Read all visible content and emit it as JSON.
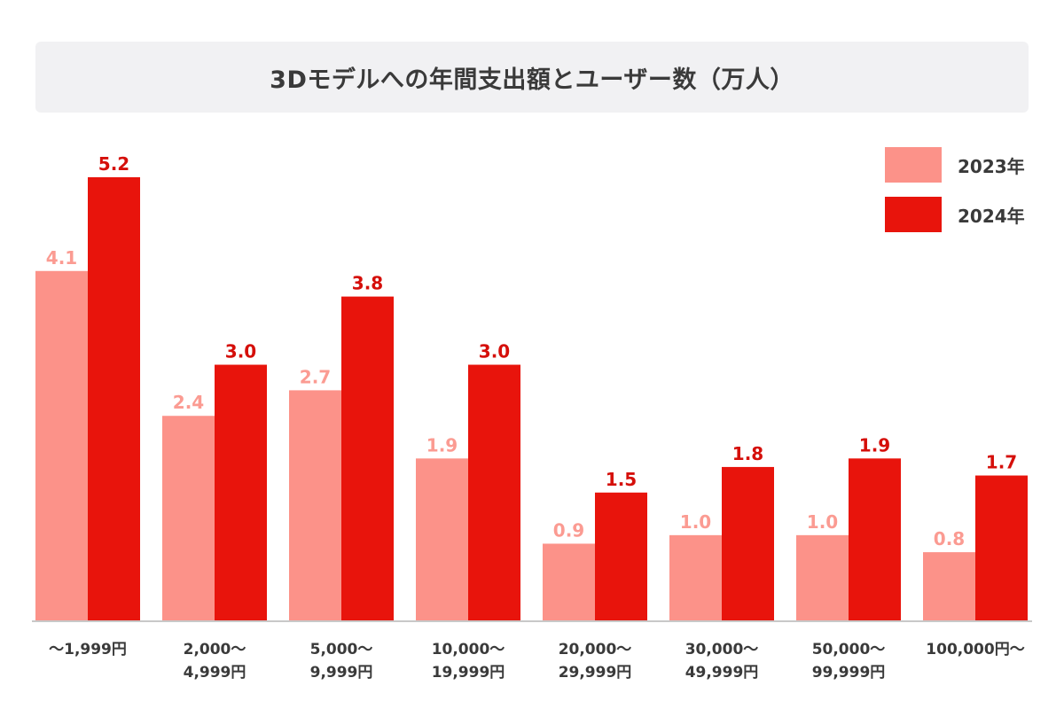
{
  "chart_data": {
    "type": "bar",
    "title": "3Dモデルへの年間支出額とユーザー数（万人）",
    "categories": [
      [
        "～1,999円"
      ],
      [
        "2,000～",
        "4,999円"
      ],
      [
        "5,000～",
        "9,999円"
      ],
      [
        "10,000～",
        "19,999円"
      ],
      [
        "20,000～",
        "29,999円"
      ],
      [
        "30,000～",
        "49,999円"
      ],
      [
        "50,000～",
        "99,999円"
      ],
      [
        "100,000円～"
      ]
    ],
    "series": [
      {
        "name": "2023年",
        "color": "#fc9289",
        "label_color": "#fb9b92",
        "values": [
          4.1,
          2.4,
          2.7,
          1.9,
          0.9,
          1.0,
          1.0,
          0.8
        ]
      },
      {
        "name": "2024年",
        "color": "#e8140c",
        "label_color": "#d50f0a",
        "values": [
          5.2,
          3.0,
          3.8,
          3.0,
          1.5,
          1.8,
          1.9,
          1.7
        ]
      }
    ],
    "value_labels": [
      [
        "4.1",
        "2.4",
        "2.7",
        "1.9",
        "0.9",
        "1.0",
        "1.0",
        "0.8"
      ],
      [
        "5.2",
        "3.0",
        "3.8",
        "3.0",
        "1.5",
        "1.8",
        "1.9",
        "1.7"
      ]
    ],
    "ylim": [
      0,
      5.2
    ],
    "grid": false,
    "legend_position": "top-right",
    "xlabel": "",
    "ylabel": ""
  }
}
